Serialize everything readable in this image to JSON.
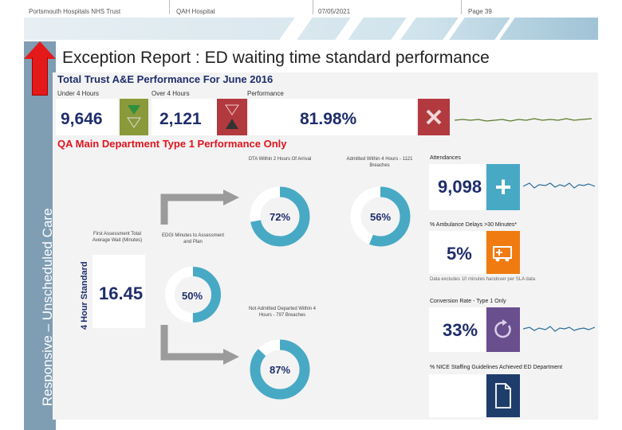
{
  "header": {
    "trust": "Portsmouth Hospitals NHS Trust",
    "hospital": "QAH Hospital",
    "date": "07/05/2021",
    "page": "Page 39"
  },
  "sidebar": {
    "label": "Responsive – Unscheduled Care"
  },
  "title": "Exception Report : ED waiting time standard performance",
  "trust_section": {
    "heading": "Total Trust A&E Performance For June 2016",
    "under_label": "Under 4 Hours",
    "under_value": "9,646",
    "over_label": "Over 4 Hours",
    "over_value": "2,121",
    "performance_label": "Performance",
    "performance_value": "81.98%"
  },
  "qa_section": {
    "heading": "QA Main Department Type 1 Performance Only",
    "four_hour": "4 Hour Standard",
    "first_assessment_label": "First Assessment Total Average Wait (Minutes)",
    "first_assessment_value": "16.45",
    "edgi_label": "EDGI Minutes to Assessment and Plan",
    "edgi_pct": 50,
    "edgi_text": "50%",
    "dta_label": "DTA Within 2 Hours Of Arrival",
    "dta_pct": 72,
    "dta_text": "72%",
    "admitted_label": "Admitted Within 4 Hours - 1121 Breaches",
    "admitted_pct": 56,
    "admitted_text": "56%",
    "not_admitted_label": "Not Admitted Departed Within 4 Hours - 797 Breaches",
    "not_admitted_pct": 87,
    "not_admitted_text": "87%"
  },
  "right_metrics": {
    "attendances_label": "Attendances",
    "attendances_value": "9,098",
    "ambulance_label": "% Ambulance Delays >30 Minutes*",
    "ambulance_value": "5%",
    "ambulance_note": "Data excludes 10 minutes handover per SLA data",
    "conversion_label": "Conversion Rate - Type 1 Only",
    "conversion_value": "33%",
    "nice_label": "% NICE Staffing Guidelines Achieved ED Department"
  },
  "colors": {
    "teal": "#48a9c5",
    "olive": "#8a9a3a",
    "maroon": "#b23a3f",
    "purple": "#6a4f8f",
    "navy": "#1f3d6b",
    "orange": "#f07b10"
  }
}
